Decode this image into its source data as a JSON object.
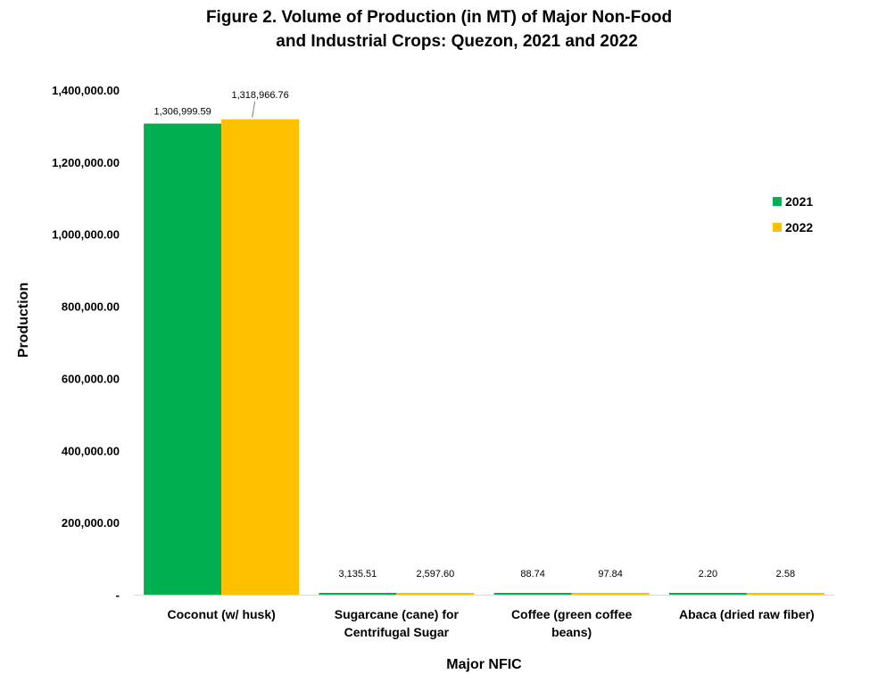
{
  "chart_data": {
    "type": "bar",
    "title_lines": [
      "Figure 2. Volume of Production (in MT) of Major Non-Food",
      "and Industrial Crops: Quezon, 2021 and 2022"
    ],
    "xlabel": "Major NFIC",
    "ylabel": "Production",
    "ylim": [
      0,
      1400000
    ],
    "yticks": [
      0,
      200000,
      400000,
      600000,
      800000,
      1000000,
      1200000,
      1400000
    ],
    "ytick_labels": [
      "-",
      "200,000.00",
      "400,000.00",
      "600,000.00",
      "800,000.00",
      "1,000,000.00",
      "1,200,000.00",
      "1,400,000.00"
    ],
    "categories": [
      [
        "Coconut (w/ husk)"
      ],
      [
        "Sugarcane (cane) for",
        "Centrifugal Sugar"
      ],
      [
        "Coffee (green coffee",
        "beans)"
      ],
      [
        "Abaca (dried raw fiber)"
      ]
    ],
    "series": [
      {
        "name": "2021",
        "color": "#00B050",
        "values": [
          1306999.59,
          3135.51,
          88.74,
          2.2
        ],
        "labels": [
          "1,306,999.59",
          "3,135.51",
          "88.74",
          "2.20"
        ]
      },
      {
        "name": "2022",
        "color": "#FFC000",
        "values": [
          1318966.76,
          2597.6,
          97.84,
          2.58
        ],
        "labels": [
          "1,318,966.76",
          "2,597.60",
          "97.84",
          "2.58"
        ]
      }
    ],
    "grid": false,
    "legend_position": "right"
  }
}
